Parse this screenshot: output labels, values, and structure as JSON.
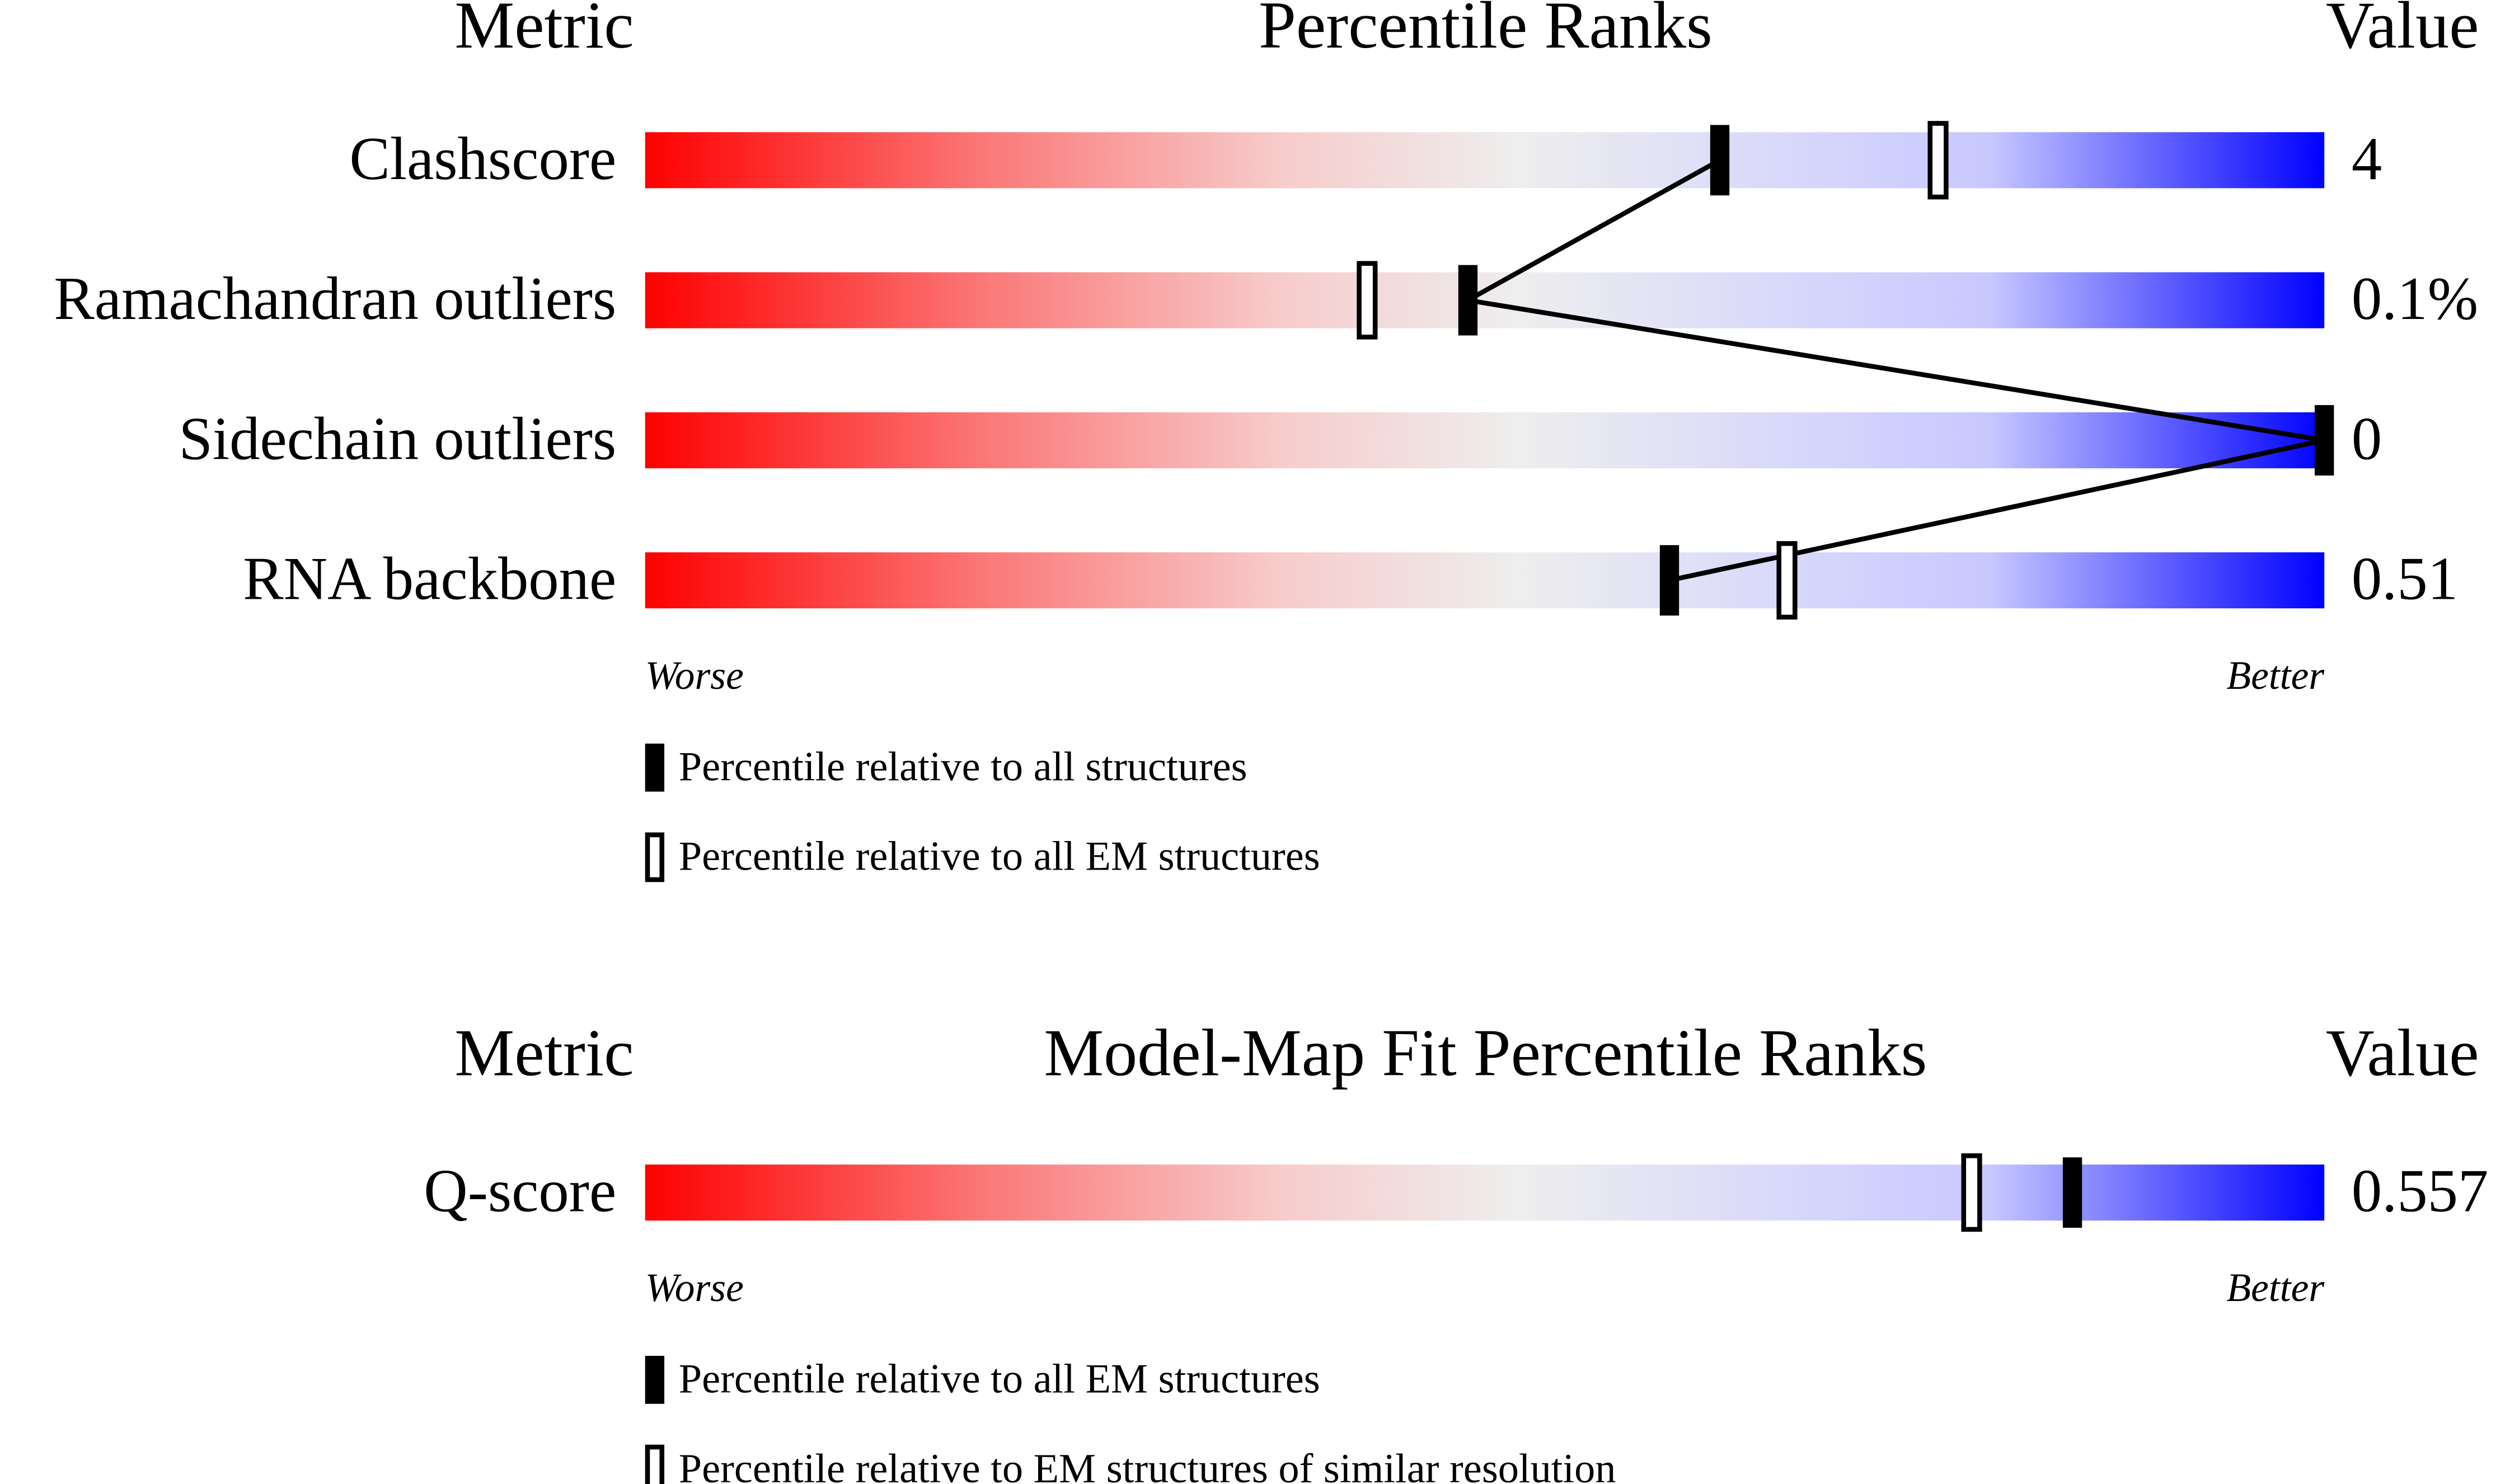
{
  "chart_data": [
    {
      "type": "percentile",
      "header_metric": "Metric",
      "title": "Percentile Ranks",
      "header_value": "Value",
      "categories": [
        "Clashscore",
        "Ramachandran outliers",
        "Sidechain outliers",
        "RNA backbone"
      ],
      "metric_values": [
        "4",
        "0.1%",
        "0",
        "0.51"
      ],
      "xlim": [
        0,
        100
      ],
      "worse": "Worse",
      "better": "Better",
      "series": [
        {
          "name": "Percentile relative to all structures",
          "color": "#000000",
          "fill": "solid",
          "values": [
            64,
            49,
            100,
            61
          ]
        },
        {
          "name": "Percentile relative to all EM structures",
          "color": "#000000",
          "fill": "open",
          "values": [
            77,
            43,
            null,
            68
          ]
        }
      ]
    },
    {
      "type": "percentile",
      "header_metric": "Metric",
      "title": "Model-Map Fit Percentile Ranks",
      "header_value": "Value",
      "categories": [
        "Q-score"
      ],
      "metric_values": [
        "0.557"
      ],
      "xlim": [
        0,
        100
      ],
      "worse": "Worse",
      "better": "Better",
      "series": [
        {
          "name": "Percentile relative to all EM structures",
          "color": "#000000",
          "fill": "solid",
          "values": [
            85
          ]
        },
        {
          "name": "Percentile relative to EM structures of similar resolution",
          "color": "#000000",
          "fill": "open",
          "values": [
            79
          ]
        }
      ]
    }
  ]
}
